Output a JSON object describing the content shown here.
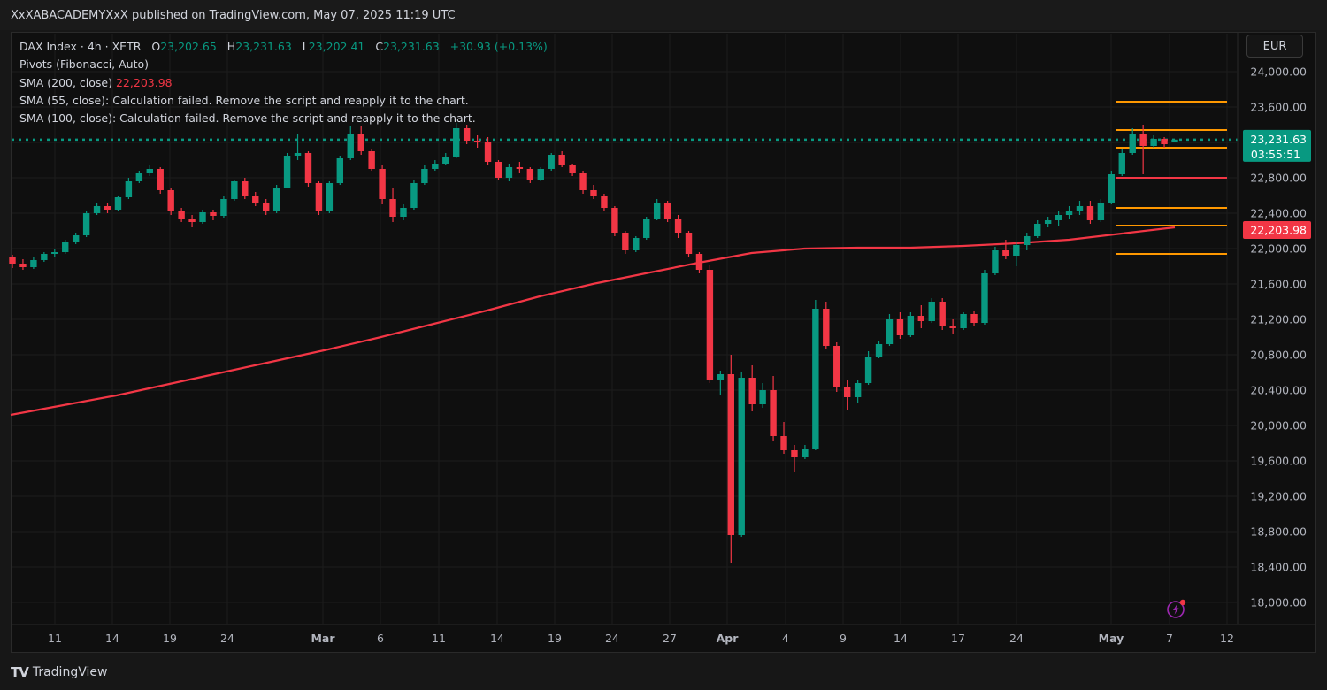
{
  "publisher": "XxXABACADEMYXxX published on TradingView.com, May 07, 2025 11:19 UTC",
  "legend": {
    "symbol": "DAX Index · 4h · XETR",
    "o_label": "O",
    "o": "23,202.65",
    "h_label": "H",
    "h": "23,231.63",
    "l_label": "L",
    "l": "23,202.41",
    "c_label": "C",
    "c": "23,231.63",
    "change": "+30.93 (+0.13%)",
    "pivots": "Pivots (Fibonacci, Auto)",
    "sma200_label": "SMA (200, close)",
    "sma200_value": "22,203.98",
    "sma55": "SMA (55, close): Calculation failed. Remove the script and reapply it to the chart.",
    "sma100": "SMA (100, close): Calculation failed. Remove the script and reapply it to the chart."
  },
  "currency": "EUR",
  "brand": "TradingView",
  "colors": {
    "up": "#089981",
    "down": "#f23645",
    "sma": "#f23645",
    "pivot_r": "#ff9800",
    "pivot_s": "#f23645",
    "price_line": "#089981",
    "background": "#0f0f0f",
    "snapshot": "#9c27b0"
  },
  "chart_data": {
    "type": "candlestick",
    "title": "DAX Index · 4h · XETR",
    "ylim": [
      17800,
      24200
    ],
    "y_ticks": [
      18000,
      18400,
      18800,
      19200,
      19600,
      20000,
      20400,
      20800,
      21200,
      21600,
      22000,
      22400,
      22800,
      23200,
      23600,
      24000
    ],
    "y_tick_labels": [
      "18,000.00",
      "18,400.00",
      "18,800.00",
      "19,200.00",
      "19,600.00",
      "20,000.00",
      "20,400.00",
      "20,800.00",
      "21,200.00",
      "21,600.00",
      "22,000.00",
      "22,400.00",
      "22,800.00",
      "23,200.00",
      "23,600.00",
      "24,000.00"
    ],
    "x_tick_labels": [
      "11",
      "14",
      "19",
      "24",
      "Mar",
      "6",
      "11",
      "14",
      "19",
      "24",
      "27",
      "Apr",
      "4",
      "9",
      "14",
      "17",
      "24",
      "May",
      "7",
      "12"
    ],
    "bold_x_ticks": [
      "Mar",
      "Apr",
      "May"
    ],
    "last_price": "23,231.63",
    "last_price_value": 23231.63,
    "countdown": "03:55:51",
    "sma200_value_label": "22,203.98",
    "pivot_levels": [
      23660,
      23340,
      23140,
      22800,
      22460,
      22260,
      21940
    ],
    "pivot_levels_kind": [
      "r",
      "r",
      "r",
      "s",
      "r",
      "r",
      "r"
    ],
    "sma200": [
      20120,
      20230,
      20340,
      20470,
      20600,
      20730,
      20860,
      21000,
      21150,
      21300,
      21460,
      21600,
      21720,
      21840,
      21950,
      22000,
      22010,
      22010,
      22030,
      22060,
      22100,
      22170,
      22240
    ],
    "ohlc": [
      [
        21900,
        21930,
        21780,
        21830
      ],
      [
        21830,
        21880,
        21760,
        21790
      ],
      [
        21790,
        21900,
        21770,
        21870
      ],
      [
        21870,
        21960,
        21850,
        21940
      ],
      [
        21940,
        22000,
        21900,
        21960
      ],
      [
        21960,
        22100,
        21940,
        22080
      ],
      [
        22080,
        22180,
        22050,
        22150
      ],
      [
        22150,
        22430,
        22130,
        22400
      ],
      [
        22400,
        22520,
        22380,
        22480
      ],
      [
        22480,
        22520,
        22400,
        22440
      ],
      [
        22440,
        22600,
        22420,
        22580
      ],
      [
        22580,
        22800,
        22560,
        22760
      ],
      [
        22760,
        22880,
        22740,
        22860
      ],
      [
        22860,
        22940,
        22820,
        22900
      ],
      [
        22900,
        22920,
        22620,
        22660
      ],
      [
        22660,
        22680,
        22380,
        22420
      ],
      [
        22420,
        22460,
        22300,
        22330
      ],
      [
        22330,
        22380,
        22240,
        22300
      ],
      [
        22300,
        22440,
        22280,
        22410
      ],
      [
        22410,
        22440,
        22320,
        22370
      ],
      [
        22370,
        22600,
        22350,
        22560
      ],
      [
        22560,
        22780,
        22540,
        22760
      ],
      [
        22760,
        22800,
        22560,
        22600
      ],
      [
        22600,
        22640,
        22480,
        22520
      ],
      [
        22520,
        22560,
        22380,
        22420
      ],
      [
        22420,
        22720,
        22400,
        22690
      ],
      [
        22690,
        23080,
        22680,
        23050
      ],
      [
        23050,
        23300,
        23000,
        23080
      ],
      [
        23080,
        23100,
        22700,
        22740
      ],
      [
        22740,
        22760,
        22380,
        22420
      ],
      [
        22420,
        22760,
        22400,
        22740
      ],
      [
        22740,
        23050,
        22720,
        23020
      ],
      [
        23020,
        23380,
        23000,
        23300
      ],
      [
        23300,
        23380,
        23060,
        23100
      ],
      [
        23100,
        23120,
        22880,
        22900
      ],
      [
        22900,
        22940,
        22500,
        22560
      ],
      [
        22560,
        22680,
        22300,
        22360
      ],
      [
        22360,
        22500,
        22320,
        22460
      ],
      [
        22460,
        22780,
        22440,
        22740
      ],
      [
        22740,
        22940,
        22720,
        22900
      ],
      [
        22900,
        23000,
        22880,
        22960
      ],
      [
        22960,
        23080,
        22940,
        23040
      ],
      [
        23040,
        23420,
        23020,
        23360
      ],
      [
        23360,
        23400,
        23180,
        23220
      ],
      [
        23220,
        23280,
        23140,
        23200
      ],
      [
        23200,
        23260,
        22940,
        22980
      ],
      [
        22980,
        23000,
        22780,
        22800
      ],
      [
        22800,
        22960,
        22760,
        22920
      ],
      [
        22920,
        22980,
        22860,
        22900
      ],
      [
        22900,
        22920,
        22740,
        22780
      ],
      [
        22780,
        22920,
        22760,
        22900
      ],
      [
        22900,
        23080,
        22880,
        23060
      ],
      [
        23060,
        23100,
        22920,
        22940
      ],
      [
        22940,
        22960,
        22820,
        22860
      ],
      [
        22860,
        22880,
        22620,
        22660
      ],
      [
        22660,
        22720,
        22560,
        22600
      ],
      [
        22600,
        22620,
        22420,
        22460
      ],
      [
        22460,
        22480,
        22140,
        22180
      ],
      [
        22180,
        22200,
        21940,
        21980
      ],
      [
        21980,
        22140,
        21960,
        22120
      ],
      [
        22120,
        22360,
        22100,
        22340
      ],
      [
        22340,
        22560,
        22320,
        22520
      ],
      [
        22520,
        22540,
        22300,
        22340
      ],
      [
        22340,
        22380,
        22120,
        22180
      ],
      [
        22180,
        22200,
        21900,
        21940
      ],
      [
        21940,
        21960,
        21720,
        21760
      ],
      [
        21760,
        21820,
        20480,
        20520
      ],
      [
        20520,
        20620,
        20340,
        20580
      ],
      [
        20580,
        20800,
        18440,
        18760
      ],
      [
        18760,
        20600,
        18740,
        20540
      ],
      [
        20540,
        20680,
        20160,
        20240
      ],
      [
        20240,
        20480,
        20200,
        20400
      ],
      [
        20400,
        20560,
        19820,
        19880
      ],
      [
        19880,
        20040,
        19680,
        19720
      ],
      [
        19720,
        19780,
        19480,
        19640
      ],
      [
        19640,
        19780,
        19620,
        19740
      ],
      [
        19740,
        21420,
        19720,
        21320
      ],
      [
        21320,
        21400,
        20860,
        20900
      ],
      [
        20900,
        20940,
        20380,
        20440
      ],
      [
        20440,
        20520,
        20180,
        20320
      ],
      [
        20320,
        20520,
        20260,
        20480
      ],
      [
        20480,
        20840,
        20460,
        20780
      ],
      [
        20780,
        20960,
        20760,
        20920
      ],
      [
        20920,
        21260,
        20900,
        21200
      ],
      [
        21200,
        21280,
        20980,
        21020
      ],
      [
        21020,
        21280,
        21000,
        21240
      ],
      [
        21240,
        21360,
        21100,
        21180
      ],
      [
        21180,
        21440,
        21160,
        21400
      ],
      [
        21400,
        21440,
        21080,
        21120
      ],
      [
        21120,
        21200,
        21040,
        21100
      ],
      [
        21100,
        21280,
        21080,
        21260
      ],
      [
        21260,
        21300,
        21120,
        21160
      ],
      [
        21160,
        21760,
        21140,
        21720
      ],
      [
        21720,
        22020,
        21700,
        21980
      ],
      [
        21980,
        22100,
        21880,
        21920
      ],
      [
        21920,
        22080,
        21800,
        22040
      ],
      [
        22040,
        22180,
        21980,
        22140
      ],
      [
        22140,
        22320,
        22120,
        22280
      ],
      [
        22280,
        22360,
        22240,
        22320
      ],
      [
        22320,
        22420,
        22260,
        22380
      ],
      [
        22380,
        22480,
        22340,
        22420
      ],
      [
        22420,
        22540,
        22380,
        22480
      ],
      [
        22480,
        22540,
        22280,
        22320
      ],
      [
        22320,
        22560,
        22300,
        22520
      ],
      [
        22520,
        22880,
        22500,
        22840
      ],
      [
        22840,
        23120,
        22820,
        23080
      ],
      [
        23080,
        23360,
        23060,
        23300
      ],
      [
        23300,
        23400,
        22840,
        23160
      ],
      [
        23160,
        23280,
        23140,
        23240
      ],
      [
        23240,
        23260,
        23140,
        23180
      ],
      [
        23202.65,
        23231.63,
        23202.41,
        23231.63
      ]
    ]
  }
}
